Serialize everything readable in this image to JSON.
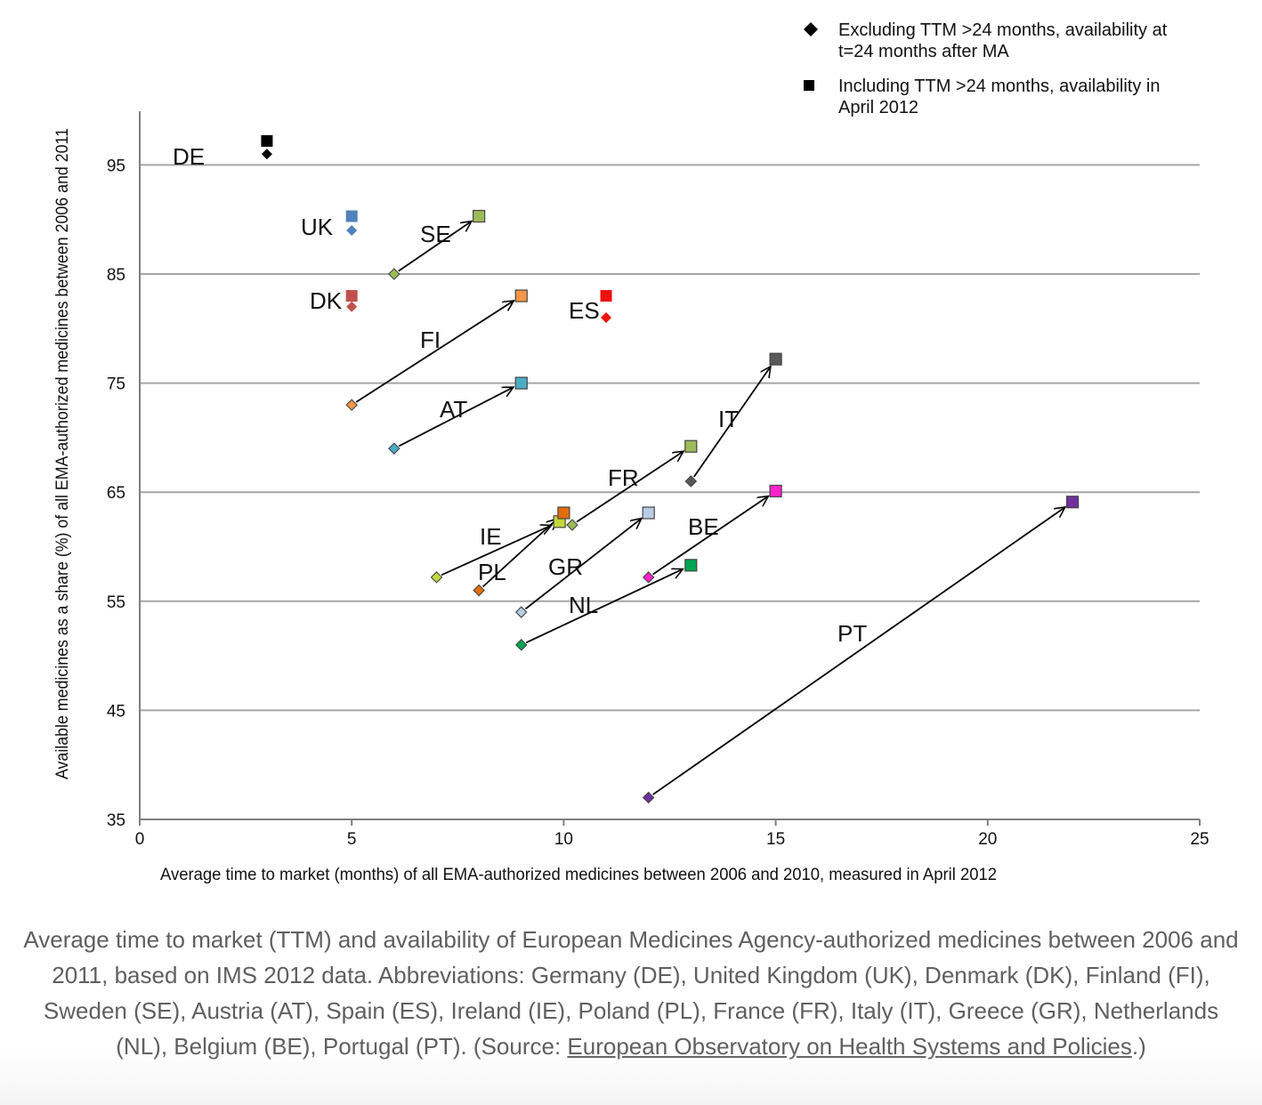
{
  "chart_data": {
    "type": "scatter",
    "xlabel": "Average  time to market  (months)  of all  EMA-authorized  medicines  between  2006 and 2010, measured  in April 2012",
    "ylabel": "Available  medicines  as a share  (%)  of all  EMA-authorized medicines  between 2006 and 2011",
    "xlim": [
      0,
      25
    ],
    "ylim": [
      35,
      100
    ],
    "xticks": [
      0,
      5,
      10,
      15,
      20,
      25
    ],
    "yticks": [
      35,
      45,
      55,
      65,
      75,
      85,
      95
    ],
    "grid": "horizontal",
    "legend": {
      "placement": "top-right",
      "entries": [
        {
          "marker": "diamond",
          "lines": [
            "Excluding TTM >24 months, availability at",
            "t=24 months after MA"
          ]
        },
        {
          "marker": "square",
          "lines": [
            "Including TTM >24 months, availability in",
            "April 2012"
          ]
        }
      ]
    },
    "series": [
      {
        "label": "DE",
        "color": "#000000",
        "excluding": {
          "x": 3,
          "y": 96
        },
        "including": {
          "x": 3,
          "y": 97.2
        },
        "arrow": false
      },
      {
        "label": "UK",
        "color": "#4f81bd",
        "excluding": {
          "x": 5,
          "y": 89
        },
        "including": {
          "x": 5,
          "y": 90.3
        },
        "arrow": false
      },
      {
        "label": "DK",
        "color": "#c0504d",
        "excluding": {
          "x": 5,
          "y": 82
        },
        "including": {
          "x": 5,
          "y": 83
        },
        "arrow": false
      },
      {
        "label": "SE",
        "color": "#9bbb59",
        "excluding": {
          "x": 6,
          "y": 85
        },
        "including": {
          "x": 8,
          "y": 90.3
        },
        "arrow": true
      },
      {
        "label": "FI",
        "color": "#f79646",
        "excluding": {
          "x": 5,
          "y": 73
        },
        "including": {
          "x": 9,
          "y": 83
        },
        "arrow": true
      },
      {
        "label": "ES",
        "color": "#ee1111",
        "excluding": {
          "x": 11,
          "y": 81
        },
        "including": {
          "x": 11,
          "y": 83
        },
        "arrow": false
      },
      {
        "label": "AT",
        "color": "#4bacc6",
        "excluding": {
          "x": 6,
          "y": 69
        },
        "including": {
          "x": 9,
          "y": 75
        },
        "arrow": true
      },
      {
        "label": "IT",
        "color": "#595959",
        "excluding": {
          "x": 13,
          "y": 66
        },
        "including": {
          "x": 15,
          "y": 77.2
        },
        "arrow": true
      },
      {
        "label": "FR",
        "color": "#9bbb59",
        "excluding": {
          "x": 10.2,
          "y": 62
        },
        "including": {
          "x": 13,
          "y": 69.2
        },
        "arrow": true
      },
      {
        "label": "IE",
        "color": "#c4d83a",
        "excluding": {
          "x": 7,
          "y": 57.2
        },
        "including": {
          "x": 9.9,
          "y": 62.3
        },
        "arrow": true
      },
      {
        "label": "PL",
        "color": "#e36c09",
        "excluding": {
          "x": 8,
          "y": 56
        },
        "including": {
          "x": 10,
          "y": 63.1
        },
        "arrow": true
      },
      {
        "label": "GR",
        "color": "#b8cce4",
        "excluding": {
          "x": 9,
          "y": 54
        },
        "including": {
          "x": 12,
          "y": 63.1
        },
        "arrow": true
      },
      {
        "label": "NL",
        "color": "#00a651",
        "excluding": {
          "x": 9,
          "y": 51
        },
        "including": {
          "x": 13,
          "y": 58.3
        },
        "arrow": true
      },
      {
        "label": "BE",
        "color": "#ff22cc",
        "excluding": {
          "x": 12,
          "y": 57.2
        },
        "including": {
          "x": 15,
          "y": 65.1
        },
        "arrow": true
      },
      {
        "label": "PT",
        "color": "#7030a0",
        "excluding": {
          "x": 12,
          "y": 37
        },
        "including": {
          "x": 22,
          "y": 64.1
        },
        "arrow": true
      }
    ]
  },
  "caption": {
    "text": "Average time to market (TTM) and availability of European Medicines Agency-authorized medicines between 2006 and 2011, based on IMS 2012 data. Abbreviations: Germany (DE), United Kingdom (UK), Denmark (DK), Finland (FI), Sweden (SE), Austria (AT), Spain (ES), Ireland (IE), Poland (PL), France (FR), Italy (IT), Greece (GR), Netherlands (NL), Belgium (BE), Portugal (PT). (Source: ",
    "link_text": "European Observatory on Health Systems and Policies",
    "tail": ".)"
  }
}
